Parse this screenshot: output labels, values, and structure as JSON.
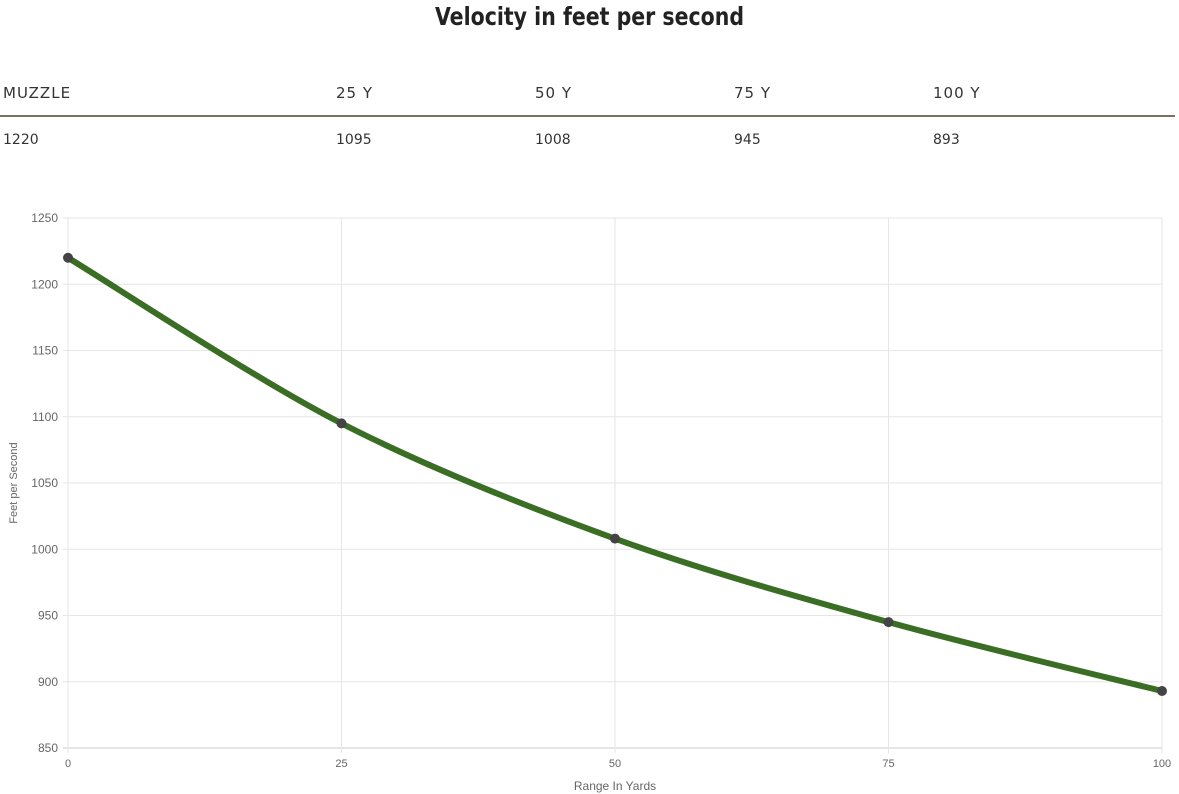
{
  "title": "Velocity in feet per second",
  "table": {
    "headers": [
      "MUZZLE",
      "25 Y",
      "50 Y",
      "75 Y",
      "100 Y"
    ],
    "values": [
      "1220",
      "1095",
      "1008",
      "945",
      "893"
    ]
  },
  "chart_data": {
    "type": "line",
    "title": "Velocity in feet per second",
    "xlabel": "Range In Yards",
    "ylabel": "Feet per Second",
    "x": [
      0,
      25,
      50,
      75,
      100
    ],
    "series": [
      {
        "name": "Velocity",
        "values": [
          1220,
          1095,
          1008,
          945,
          893
        ],
        "color": "#3a6e24"
      }
    ],
    "xticks": [
      "0",
      "25",
      "50",
      "75",
      "100"
    ],
    "yticks": [
      "850",
      "900",
      "950",
      "1000",
      "1050",
      "1100",
      "1150",
      "1200",
      "1250"
    ],
    "xlim": [
      0,
      100
    ],
    "ylim": [
      850,
      1250
    ],
    "grid": true,
    "point_color": "#444444"
  }
}
